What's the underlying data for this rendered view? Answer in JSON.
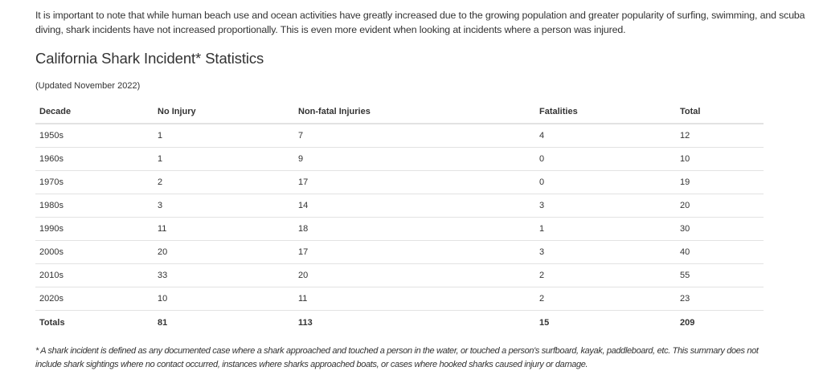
{
  "intro": "It is important to note that while human beach use and ocean activities have greatly increased due to the growing population and greater popularity of surfing, swimming, and scuba diving, shark incidents have not increased proportionally. This is even more evident when looking at incidents where a person was injured.",
  "title": "California Shark Incident* Statistics",
  "updated": "(Updated November 2022)",
  "table": {
    "headers": [
      "Decade",
      "No Injury",
      "Non-fatal Injuries",
      "Fatalities",
      "Total"
    ],
    "rows": [
      [
        "1950s",
        "1",
        "7",
        "4",
        "12"
      ],
      [
        "1960s",
        "1",
        "9",
        "0",
        "10"
      ],
      [
        "1970s",
        "2",
        "17",
        "0",
        "19"
      ],
      [
        "1980s",
        "3",
        "14",
        "3",
        "20"
      ],
      [
        "1990s",
        "11",
        "18",
        "1",
        "30"
      ],
      [
        "2000s",
        "20",
        "17",
        "3",
        "40"
      ],
      [
        "2010s",
        "33",
        "20",
        "2",
        "55"
      ],
      [
        "2020s",
        "10",
        "11",
        "2",
        "23"
      ]
    ],
    "totals": [
      "Totals",
      "81",
      "113",
      "15",
      "209"
    ]
  },
  "footnote": "* A shark incident is defined as any documented case where a shark approached and touched a person in the water, or touched a person's surfboard, kayak, paddleboard, etc. This summary does not include shark sightings where no contact occurred, instances where sharks approached boats, or cases where hooked sharks caused injury or damage."
}
